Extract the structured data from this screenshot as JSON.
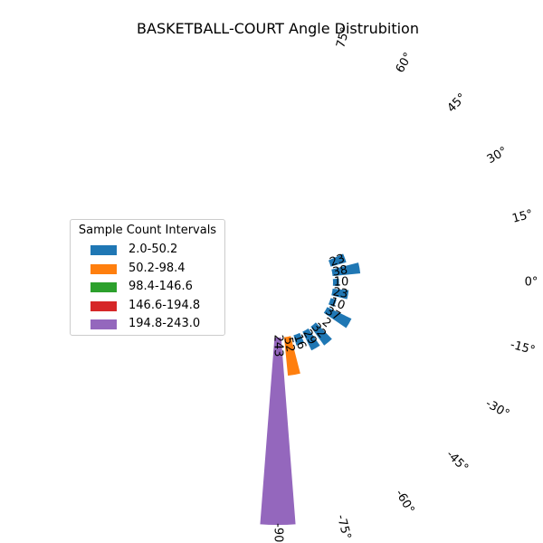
{
  "chart_data": {
    "type": "bar",
    "subtype": "polar-half",
    "title": "BASKETBALL-COURT Angle Distrubition",
    "categories": [
      -90,
      -75,
      -60,
      -45,
      -30,
      -15,
      0,
      15,
      30,
      45,
      60,
      75
    ],
    "tick_labels": [
      "-90°",
      "-75°",
      "-60°",
      "-45°",
      "-30°",
      "-15°",
      "0°",
      "15°",
      "30°",
      "45°",
      "60°",
      "75°"
    ],
    "bins": [
      {
        "angle": -90,
        "count": 243
      },
      {
        "angle": -80,
        "count": 52
      },
      {
        "angle": -70,
        "count": 16
      },
      {
        "angle": -60,
        "count": 29
      },
      {
        "angle": -50,
        "count": 32
      },
      {
        "angle": -40,
        "count": 2
      },
      {
        "angle": -30,
        "count": 37
      },
      {
        "angle": -20,
        "count": 10
      },
      {
        "angle": -10,
        "count": 23
      },
      {
        "angle": 0,
        "count": 10
      },
      {
        "angle": 10,
        "count": 38
      },
      {
        "angle": 20,
        "count": 23
      }
    ],
    "legend": {
      "title": "Sample Count Intervals",
      "placement": "left",
      "items": [
        {
          "label": "2.0-50.2",
          "color": "#1f77b4"
        },
        {
          "label": "50.2-98.4",
          "color": "#ff7f0e"
        },
        {
          "label": "98.4-146.6",
          "color": "#2ca02c"
        },
        {
          "label": "146.6-194.8",
          "color": "#d62728"
        },
        {
          "label": "194.8-243.0",
          "color": "#9467bd"
        }
      ]
    },
    "grid": false
  }
}
